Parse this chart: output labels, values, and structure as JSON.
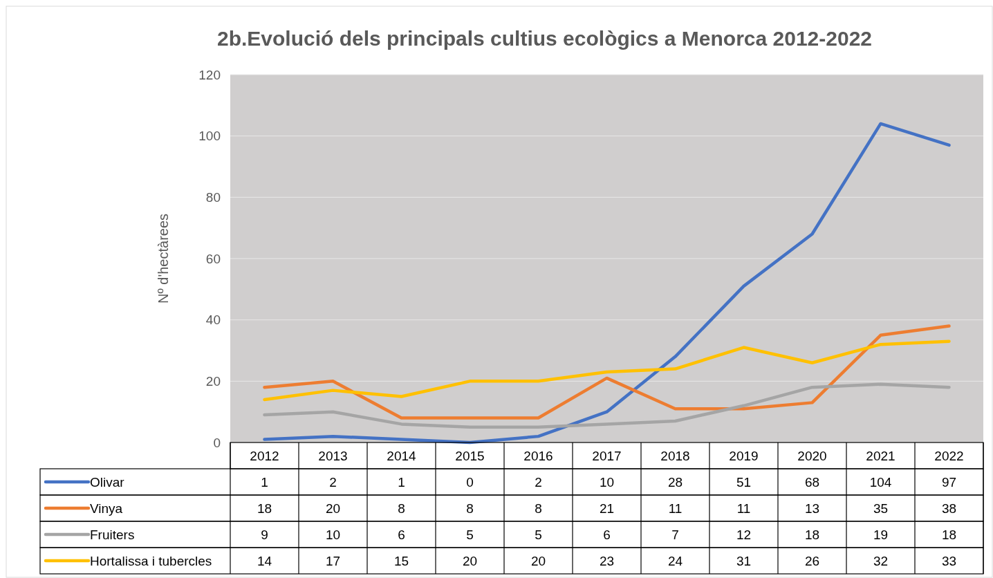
{
  "chart_data": {
    "type": "line",
    "title": "2b.Evolució dels principals cultius ecològics a Menorca 2012-2022",
    "ylabel": "Nº d'hectàrees",
    "categories": [
      "2012",
      "2013",
      "2014",
      "2015",
      "2016",
      "2017",
      "2018",
      "2019",
      "2020",
      "2021",
      "2022"
    ],
    "series": [
      {
        "name": "Olivar",
        "color": "#4472c4",
        "values": [
          1,
          2,
          1,
          0,
          2,
          10,
          28,
          51,
          68,
          104,
          97
        ]
      },
      {
        "name": "Vinya",
        "color": "#ed7d31",
        "values": [
          18,
          20,
          8,
          8,
          8,
          21,
          11,
          11,
          13,
          35,
          38
        ]
      },
      {
        "name": "Fruiters",
        "color": "#a5a5a5",
        "values": [
          9,
          10,
          6,
          5,
          5,
          6,
          7,
          12,
          18,
          19,
          18
        ]
      },
      {
        "name": "Hortalissa i tubercles",
        "color": "#ffc000",
        "values": [
          14,
          17,
          15,
          20,
          20,
          23,
          24,
          31,
          26,
          32,
          33
        ]
      }
    ],
    "ylim": [
      0,
      120
    ],
    "yticks": [
      0,
      20,
      40,
      60,
      80,
      100,
      120
    ],
    "grid": "y",
    "legend": "bottom",
    "data_labels": true,
    "marker": "none",
    "line_style": "solid"
  }
}
